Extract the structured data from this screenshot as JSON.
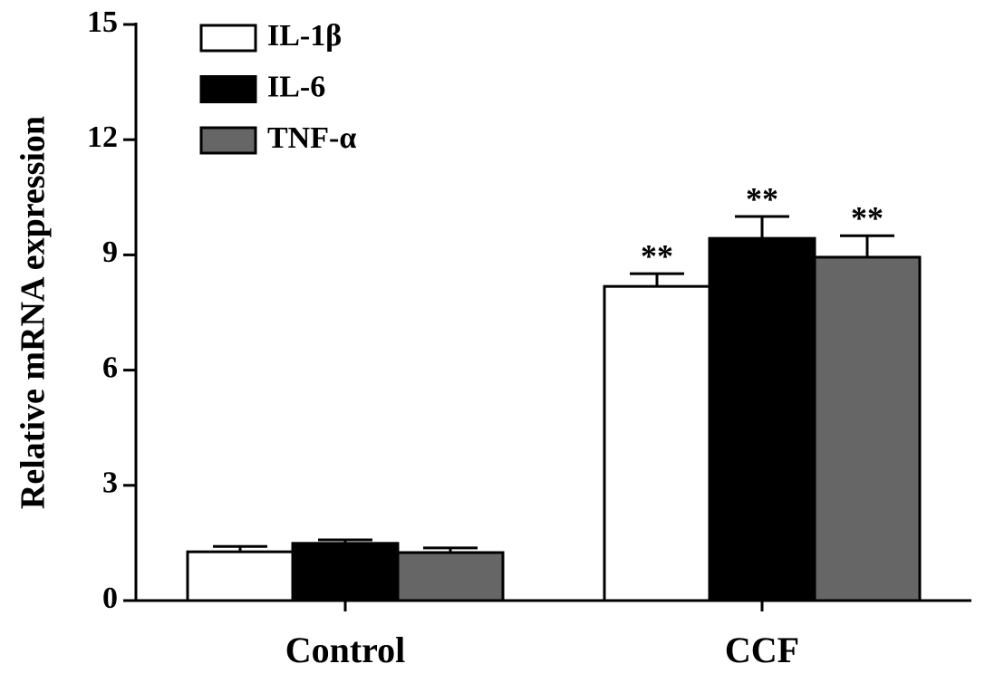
{
  "chart_data": {
    "type": "bar",
    "y_label": "Relative mRNA expression",
    "categories": [
      "Control",
      "CCF"
    ],
    "series": [
      {
        "name": "IL-1β",
        "color": "#ffffff",
        "values": [
          1.27,
          8.18
        ],
        "errors": [
          0.14,
          0.33
        ],
        "annotations": [
          null,
          "**"
        ]
      },
      {
        "name": "IL-6",
        "color": "#000000",
        "values": [
          1.49,
          9.43
        ],
        "errors": [
          0.09,
          0.57
        ],
        "annotations": [
          null,
          "**"
        ]
      },
      {
        "name": "TNF-α",
        "color": "#666666",
        "values": [
          1.25,
          8.94
        ],
        "errors": [
          0.12,
          0.56
        ],
        "annotations": [
          null,
          "**"
        ]
      }
    ],
    "ylim": [
      0,
      15
    ],
    "yticks": [
      0,
      3,
      6,
      9,
      12,
      15
    ],
    "grid": false,
    "legend": "upper left"
  }
}
